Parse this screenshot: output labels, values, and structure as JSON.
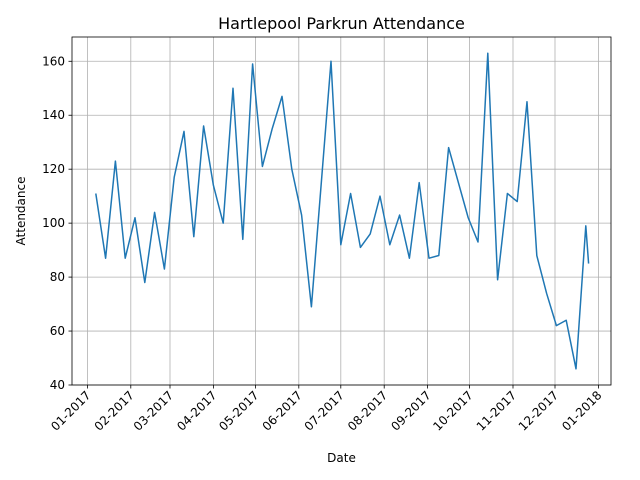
{
  "chart_data": {
    "type": "line",
    "title": "Hartlepool Parkrun Attendance",
    "xlabel": "Date",
    "ylabel": "Attendance",
    "grid": true,
    "legend": "none",
    "color": "#1f77b4",
    "xlim": [
      "2016-12-21",
      "2018-01-10"
    ],
    "ylim": [
      40,
      169
    ],
    "x_ticks": [
      "2017-01-01",
      "2017-02-01",
      "2017-03-01",
      "2017-04-01",
      "2017-05-01",
      "2017-06-01",
      "2017-07-01",
      "2017-08-01",
      "2017-09-01",
      "2017-10-01",
      "2017-11-01",
      "2017-12-01",
      "2018-01-01"
    ],
    "x_tick_labels": [
      "01-2017",
      "02-2017",
      "03-2017",
      "04-2017",
      "05-2017",
      "06-2017",
      "07-2017",
      "08-2017",
      "09-2017",
      "10-2017",
      "11-2017",
      "12-2017",
      "01-2018"
    ],
    "y_ticks": [
      40,
      60,
      80,
      100,
      120,
      140,
      160
    ],
    "y_tick_labels": [
      "40",
      "60",
      "80",
      "100",
      "120",
      "140",
      "160"
    ],
    "x": [
      "2017-01-07",
      "2017-01-14",
      "2017-01-21",
      "2017-01-28",
      "2017-02-04",
      "2017-02-11",
      "2017-02-18",
      "2017-02-25",
      "2017-03-04",
      "2017-03-11",
      "2017-03-18",
      "2017-03-25",
      "2017-04-01",
      "2017-04-08",
      "2017-04-15",
      "2017-04-22",
      "2017-04-29",
      "2017-05-06",
      "2017-05-13",
      "2017-05-20",
      "2017-05-27",
      "2017-06-03",
      "2017-06-10",
      "2017-06-24",
      "2017-07-01",
      "2017-07-08",
      "2017-07-15",
      "2017-07-22",
      "2017-07-29",
      "2017-08-05",
      "2017-08-12",
      "2017-08-19",
      "2017-08-26",
      "2017-09-02",
      "2017-09-09",
      "2017-09-16",
      "2017-09-30",
      "2017-10-07",
      "2017-10-14",
      "2017-10-21",
      "2017-10-28",
      "2017-11-04",
      "2017-11-11",
      "2017-11-18",
      "2017-11-25",
      "2017-12-02",
      "2017-12-09",
      "2017-12-16",
      "2017-12-23",
      "2017-12-25"
    ],
    "y": [
      111,
      87,
      123,
      87,
      102,
      78,
      104,
      83,
      117,
      134,
      95,
      136,
      114,
      100,
      150,
      94,
      159,
      121,
      135,
      147,
      120,
      103,
      69,
      160,
      92,
      111,
      91,
      96,
      110,
      92,
      103,
      87,
      115,
      87,
      88,
      128,
      102,
      93,
      163,
      79,
      111,
      108,
      145,
      88,
      74,
      62,
      64,
      46,
      99,
      85
    ]
  }
}
